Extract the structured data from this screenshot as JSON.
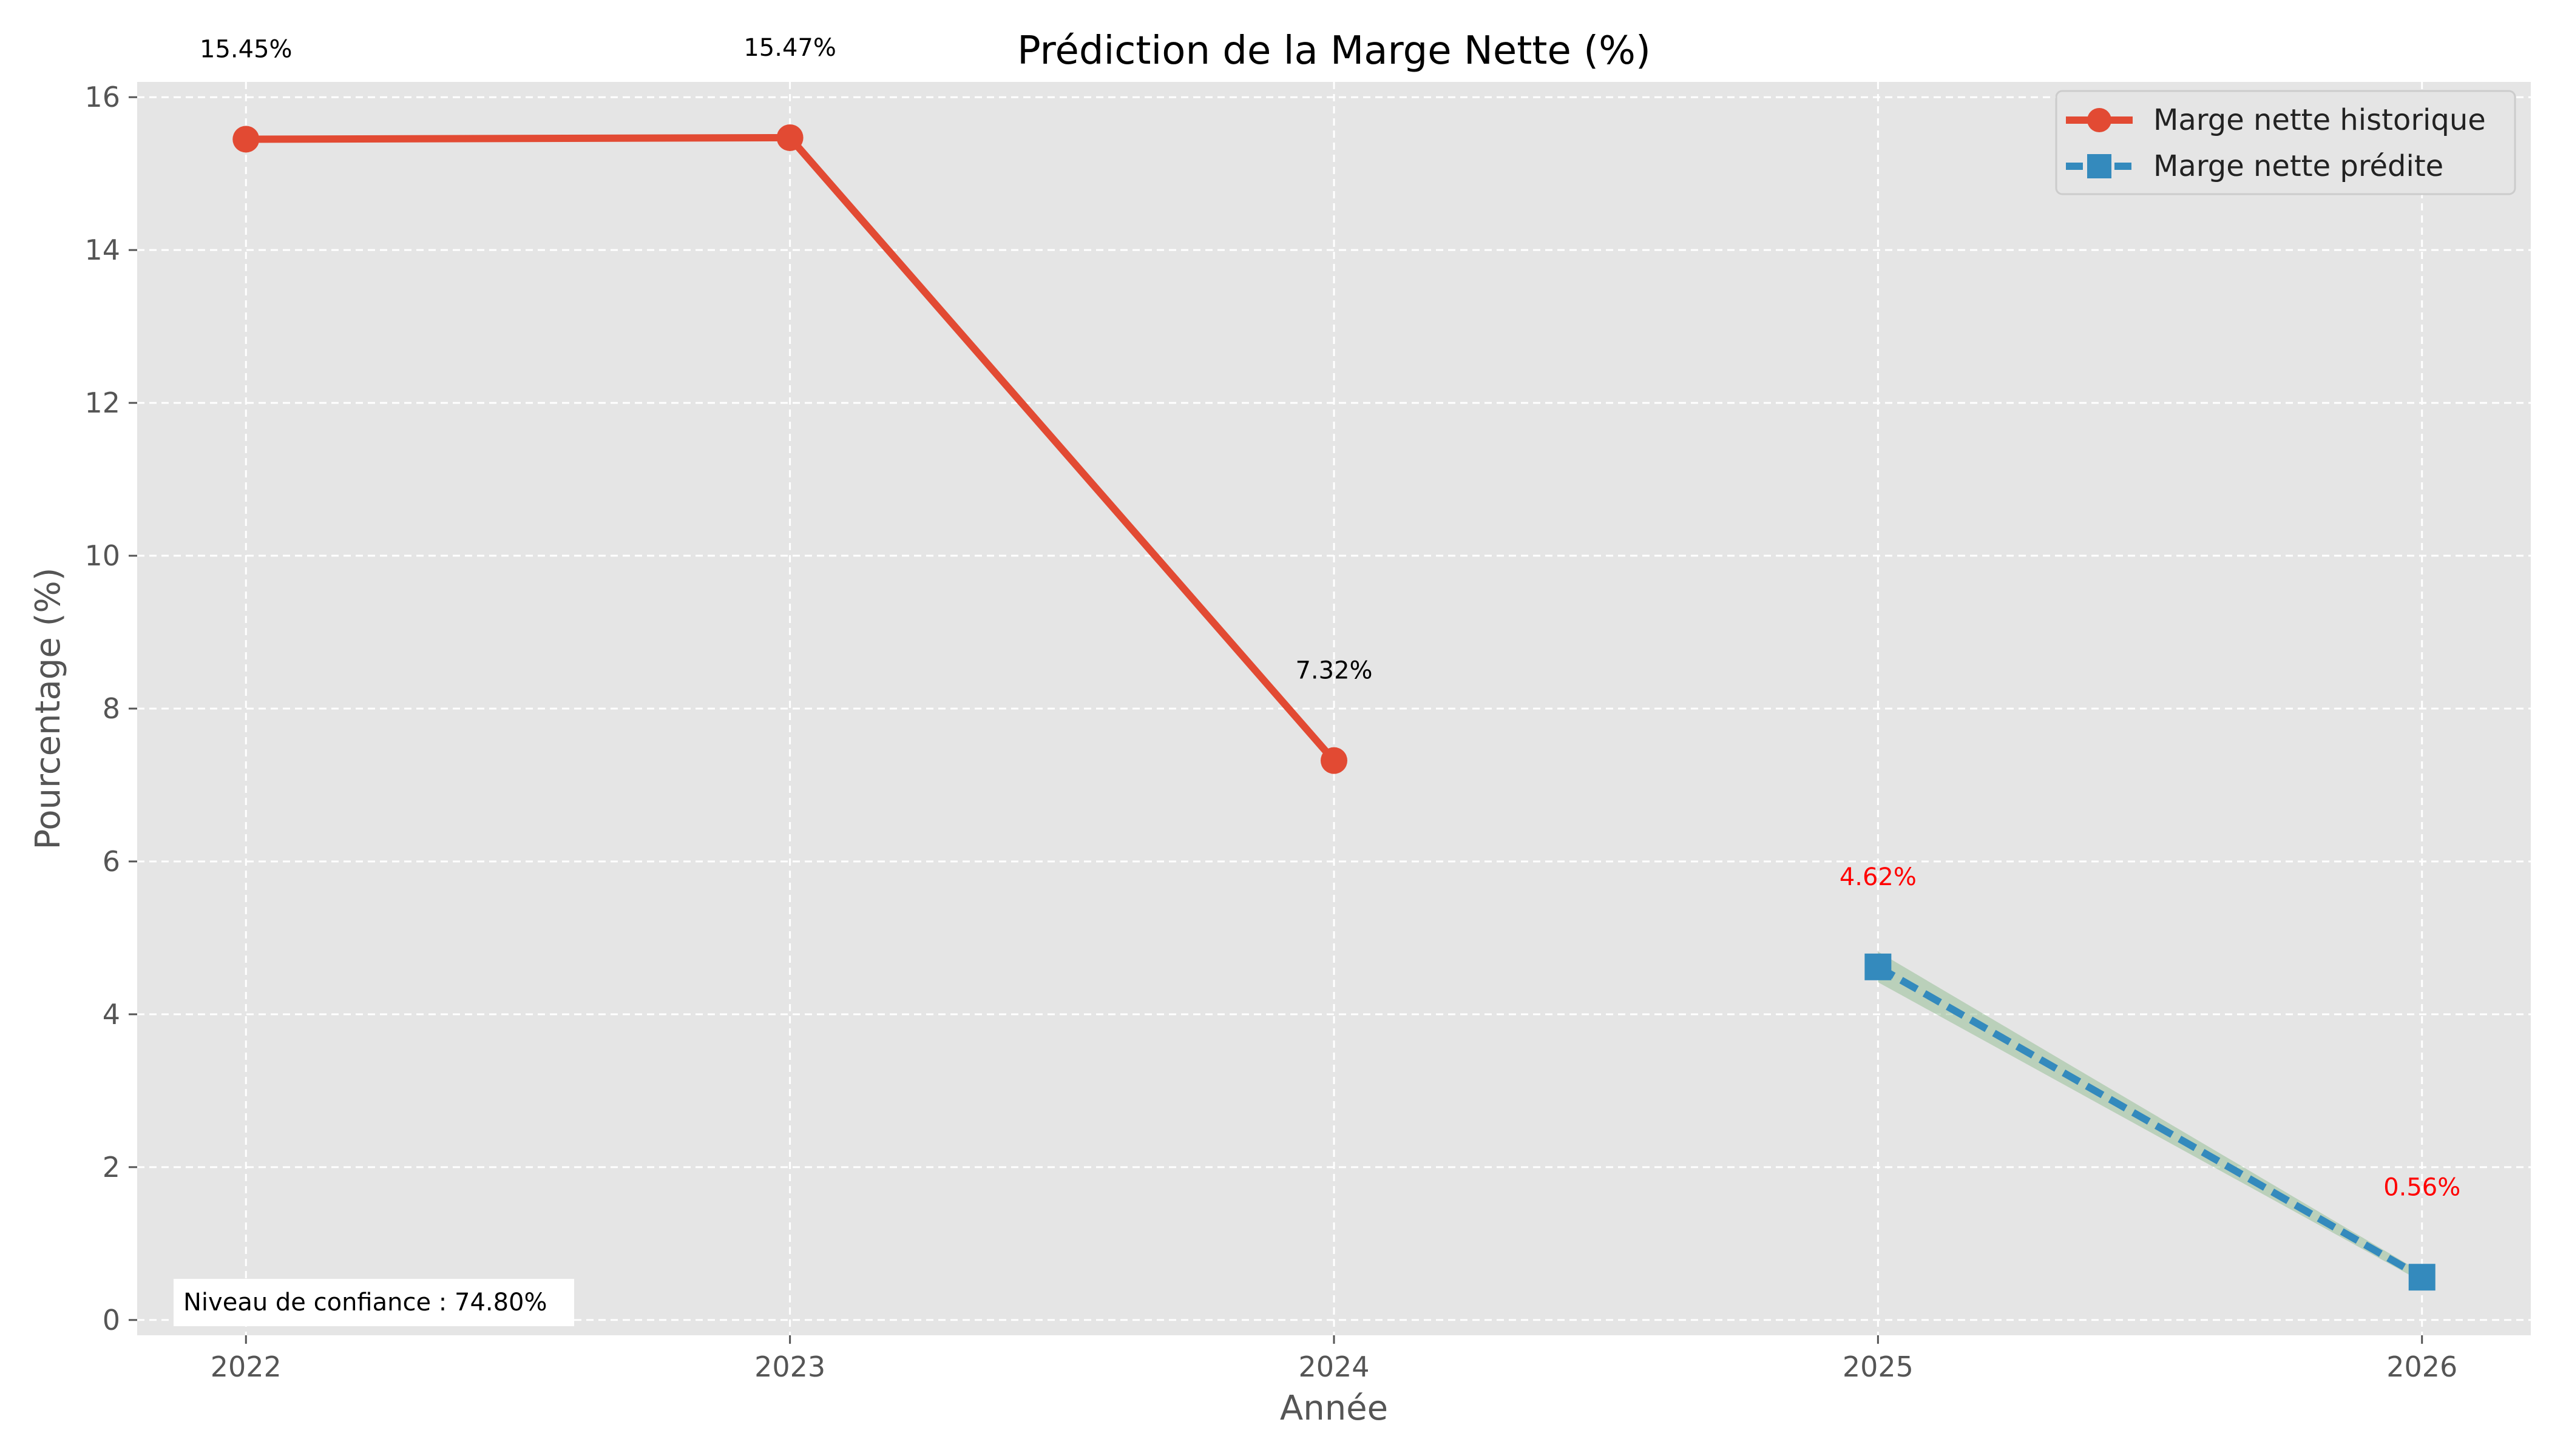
{
  "chart_data": {
    "type": "line",
    "title": "Prédiction de la Marge Nette (%)",
    "xlabel": "Année",
    "ylabel": "Pourcentage (%)",
    "x_ticks": [
      "2022",
      "2023",
      "2024",
      "2025",
      "2026"
    ],
    "y_ticks": [
      "0",
      "2",
      "4",
      "6",
      "8",
      "10",
      "12",
      "14",
      "16"
    ],
    "xlim": [
      2021.8,
      2026.2
    ],
    "ylim": [
      -0.2,
      16.2
    ],
    "grid": true,
    "legend_position": "top-right",
    "series": [
      {
        "name": "Marge nette historique",
        "style": "solid",
        "marker": "circle",
        "color": "#E24A33",
        "x": [
          2022,
          2023,
          2024
        ],
        "y": [
          15.45,
          15.47,
          7.32
        ],
        "labels": [
          "15.45%",
          "15.47%",
          "7.32%"
        ],
        "label_color": "#000000"
      },
      {
        "name": "Marge nette prédite",
        "style": "dashed",
        "marker": "square",
        "color": "#348ABD",
        "x": [
          2025,
          2026
        ],
        "y": [
          4.62,
          0.56
        ],
        "labels": [
          "4.62%",
          "0.56%"
        ],
        "label_color": "#FF0000"
      }
    ],
    "confidence_band": {
      "color": "#8FBC8F",
      "x": [
        2025,
        2026
      ],
      "lower": [
        4.42,
        0.5
      ],
      "upper": [
        4.82,
        0.62
      ]
    },
    "annotation": "Niveau de confiance : 74.80%"
  }
}
